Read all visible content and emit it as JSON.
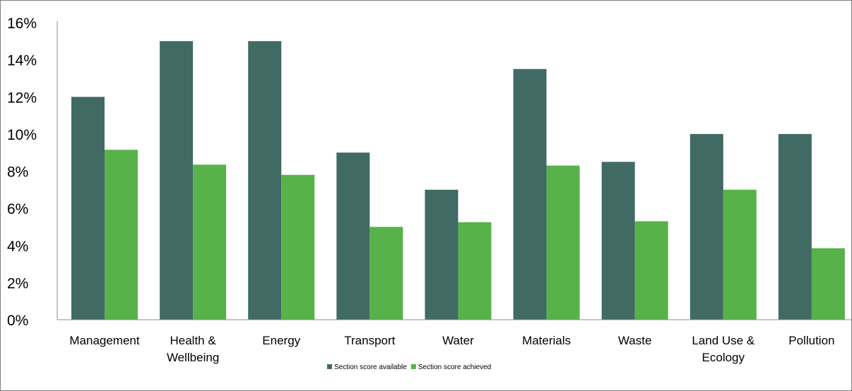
{
  "chart_data": {
    "type": "bar",
    "title": "",
    "xlabel": "",
    "ylabel": "",
    "categories": [
      "Management",
      "Health & Wellbeing",
      "Energy",
      "Transport",
      "Water",
      "Materials",
      "Waste",
      "Land Use & Ecology",
      "Pollution"
    ],
    "series": [
      {
        "name": "Section score available",
        "color": "#416a65",
        "values": [
          12,
          15,
          15,
          9,
          7,
          13.5,
          8.5,
          10,
          10
        ]
      },
      {
        "name": "Section score achieved",
        "color": "#58b24a",
        "values": [
          9.15,
          8.35,
          7.8,
          5.0,
          5.25,
          8.3,
          5.3,
          7.0,
          3.85
        ]
      }
    ],
    "ylim": [
      0,
      16
    ],
    "yticks": [
      "0%",
      "2%",
      "4%",
      "6%",
      "8%",
      "10%",
      "12%",
      "14%",
      "16%"
    ],
    "legend_position": "bottom",
    "grid": false
  }
}
